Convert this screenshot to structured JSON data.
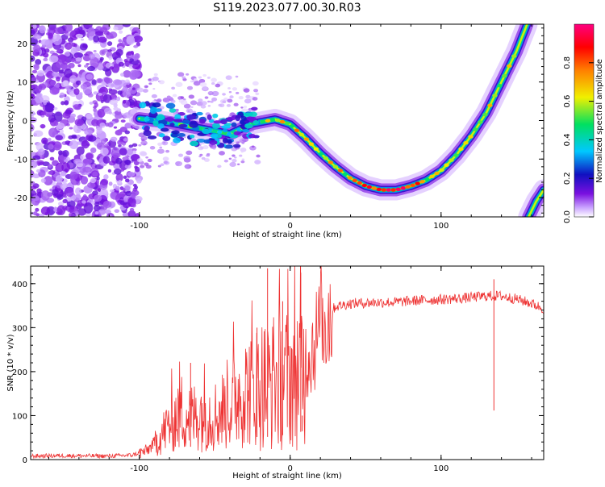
{
  "title": "S119.2023.077.00.30.R03",
  "chart_data": [
    {
      "type": "heatmap",
      "xlabel": "Height of straight line (km)",
      "ylabel": "Frequency (Hz)",
      "xlim": [
        -172,
        168
      ],
      "ylim": [
        -25,
        25
      ],
      "x_ticks": [
        -100,
        0,
        100
      ],
      "y_ticks": [
        -20,
        -10,
        0,
        10,
        20
      ],
      "colorbar": {
        "label": "Normalized spectral amplitude",
        "ticks": [
          0.0,
          0.2,
          0.4,
          0.6,
          0.8
        ],
        "range": [
          0,
          1
        ],
        "colors": [
          "#ffffff",
          "#7a10e0",
          "#1010c0",
          "#00c8ff",
          "#00e060",
          "#f0f000",
          "#ff8000",
          "#ff0000",
          "#ff0080"
        ]
      },
      "ridge": [
        {
          "x": -100,
          "y": 0.5
        },
        {
          "x": -80,
          "y": -0.5
        },
        {
          "x": -60,
          "y": -2.0
        },
        {
          "x": -40,
          "y": -3.5
        },
        {
          "x": -25,
          "y": -0.8
        },
        {
          "x": -10,
          "y": 0.3
        },
        {
          "x": 0,
          "y": -1.0
        },
        {
          "x": 10,
          "y": -4.5
        },
        {
          "x": 20,
          "y": -8.5
        },
        {
          "x": 30,
          "y": -12.0
        },
        {
          "x": 40,
          "y": -15.0
        },
        {
          "x": 50,
          "y": -17.0
        },
        {
          "x": 60,
          "y": -18.0
        },
        {
          "x": 70,
          "y": -18.0
        },
        {
          "x": 80,
          "y": -17.0
        },
        {
          "x": 90,
          "y": -15.5
        },
        {
          "x": 100,
          "y": -13.0
        },
        {
          "x": 110,
          "y": -9.0
        },
        {
          "x": 120,
          "y": -4.0
        },
        {
          "x": 130,
          "y": 2.0
        },
        {
          "x": 140,
          "y": 10.0
        },
        {
          "x": 150,
          "y": 18.0
        },
        {
          "x": 157,
          "y": 25.0
        }
      ],
      "ridge_secondary": [
        {
          "x": 158,
          "y": -25.0
        },
        {
          "x": 163,
          "y": -21.0
        },
        {
          "x": 168,
          "y": -18.0
        }
      ]
    },
    {
      "type": "line",
      "xlabel": "Height of straight line (km)",
      "ylabel": "SNR (10 * v/v)",
      "xlim": [
        -172,
        168
      ],
      "ylim": [
        0,
        440
      ],
      "x_ticks": [
        -100,
        0,
        100
      ],
      "y_ticks": [
        0,
        100,
        200,
        300,
        400
      ],
      "color": "#ee3333",
      "series": [
        {
          "values": [
            {
              "x": -172,
              "y": 8
            },
            {
              "x": -150,
              "y": 9
            },
            {
              "x": -120,
              "y": 8
            },
            {
              "x": -105,
              "y": 10
            },
            {
              "x": -95,
              "y": 20
            },
            {
              "x": -88,
              "y": 45
            },
            {
              "x": -80,
              "y": 80
            },
            {
              "x": -72,
              "y": 110
            },
            {
              "x": -65,
              "y": 95
            },
            {
              "x": -58,
              "y": 110
            },
            {
              "x": -50,
              "y": 100
            },
            {
              "x": -42,
              "y": 120
            },
            {
              "x": -35,
              "y": 150
            },
            {
              "x": -28,
              "y": 160
            },
            {
              "x": -20,
              "y": 175
            },
            {
              "x": -12,
              "y": 170
            },
            {
              "x": -5,
              "y": 185
            },
            {
              "x": 0,
              "y": 190
            },
            {
              "x": 5,
              "y": 200
            },
            {
              "x": 10,
              "y": 225
            },
            {
              "x": 15,
              "y": 260
            },
            {
              "x": 20,
              "y": 295
            },
            {
              "x": 25,
              "y": 330
            },
            {
              "x": 30,
              "y": 348
            },
            {
              "x": 40,
              "y": 355
            },
            {
              "x": 55,
              "y": 357
            },
            {
              "x": 70,
              "y": 358
            },
            {
              "x": 85,
              "y": 362
            },
            {
              "x": 100,
              "y": 364
            },
            {
              "x": 115,
              "y": 367
            },
            {
              "x": 130,
              "y": 372
            },
            {
              "x": 140,
              "y": 372
            },
            {
              "x": 150,
              "y": 365
            },
            {
              "x": 160,
              "y": 355
            },
            {
              "x": 168,
              "y": 343
            }
          ],
          "peaks": [
            {
              "x": -15,
              "y": 435
            },
            {
              "x": -5,
              "y": 360
            },
            {
              "x": 7,
              "y": 425
            },
            {
              "x": 8,
              "y": 100
            },
            {
              "x": -66,
              "y": 220
            },
            {
              "x": -22,
              "y": 300
            },
            {
              "x": 135,
              "y": 410
            }
          ]
        }
      ]
    }
  ]
}
